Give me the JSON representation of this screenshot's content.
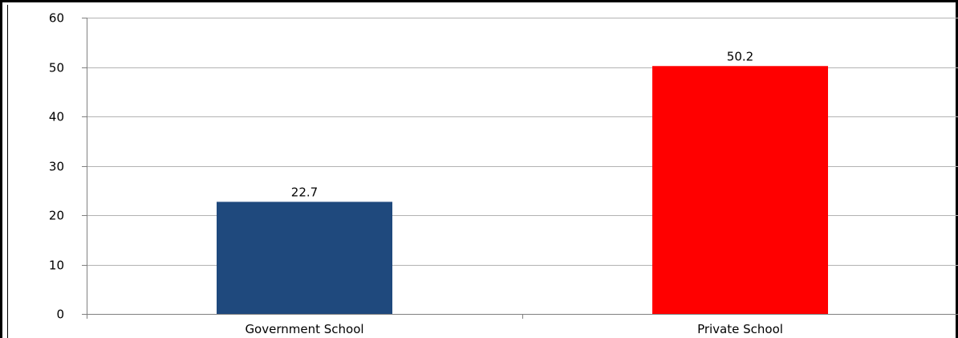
{
  "chart_data": {
    "type": "bar",
    "categories": [
      "Government School",
      "Private School"
    ],
    "values": [
      22.7,
      50.2
    ],
    "value_labels": [
      "22.7",
      "50.2"
    ],
    "colors": [
      "#1f497d",
      "#ff0000"
    ],
    "ylim": [
      0,
      60
    ],
    "yticks": [
      0,
      10,
      20,
      30,
      40,
      50,
      60
    ],
    "ytick_labels": [
      "0",
      "10",
      "20",
      "30",
      "40",
      "50",
      "60"
    ],
    "title": "",
    "xlabel": "",
    "ylabel": "",
    "grid": true,
    "gridline_color": "#b3b3b3"
  }
}
